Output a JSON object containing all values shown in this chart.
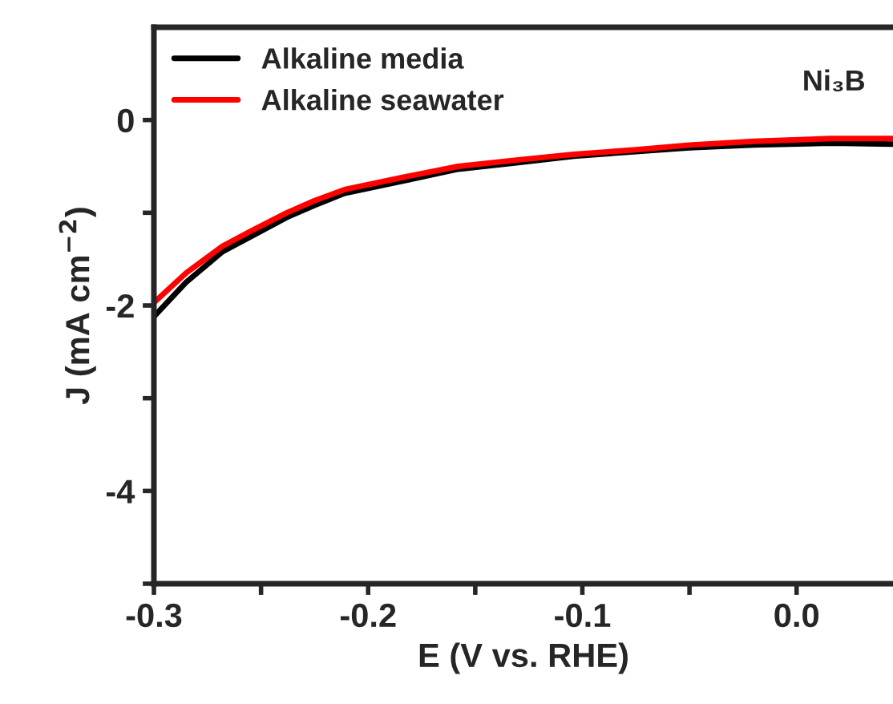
{
  "chart_data": {
    "type": "line",
    "xlabel": "E (V vs. RHE)",
    "ylabel": "J (mA cm$^{−2}$)",
    "annotations": [
      "Ni₃B"
    ],
    "xlim": [
      -0.3,
      0.045
    ],
    "ylim": [
      -5,
      1
    ],
    "xticks": [
      {
        "value": -0.3,
        "label": "-0.3"
      },
      {
        "value": -0.25,
        "label": null
      },
      {
        "value": -0.2,
        "label": "-0.2"
      },
      {
        "value": -0.15,
        "label": null
      },
      {
        "value": -0.1,
        "label": "-0.1"
      },
      {
        "value": -0.05,
        "label": null
      },
      {
        "value": 0.0,
        "label": "0.0"
      }
    ],
    "yticks": [
      {
        "value": -5,
        "label": null
      },
      {
        "value": -4,
        "label": "-4"
      },
      {
        "value": -3,
        "label": null
      },
      {
        "value": -2,
        "label": "-2"
      },
      {
        "value": -1,
        "label": null
      },
      {
        "value": 0,
        "label": "0"
      }
    ],
    "grid": false,
    "legend": "top left",
    "marker": "none",
    "line_style": "solid",
    "series": [
      {
        "name": "Alkaline media",
        "color": "#000000",
        "x": [
          -0.3,
          -0.285,
          -0.268,
          -0.255,
          -0.238,
          -0.225,
          -0.211,
          -0.18,
          -0.158,
          -0.13,
          -0.104,
          -0.075,
          -0.05,
          -0.02,
          0.016,
          0.045
        ],
        "values": [
          -2.12,
          -1.75,
          -1.42,
          -1.26,
          -1.05,
          -0.92,
          -0.79,
          -0.64,
          -0.53,
          -0.46,
          -0.39,
          -0.34,
          -0.3,
          -0.27,
          -0.25,
          -0.26
        ]
      },
      {
        "name": "Alkaline seawater",
        "color": "#ff0000",
        "x": [
          -0.3,
          -0.285,
          -0.268,
          -0.255,
          -0.238,
          -0.225,
          -0.211,
          -0.18,
          -0.158,
          -0.13,
          -0.104,
          -0.075,
          -0.05,
          -0.02,
          0.016,
          0.045
        ],
        "values": [
          -1.97,
          -1.65,
          -1.36,
          -1.2,
          -1.0,
          -0.87,
          -0.75,
          -0.6,
          -0.5,
          -0.43,
          -0.37,
          -0.32,
          -0.27,
          -0.23,
          -0.2,
          -0.2
        ]
      }
    ]
  }
}
